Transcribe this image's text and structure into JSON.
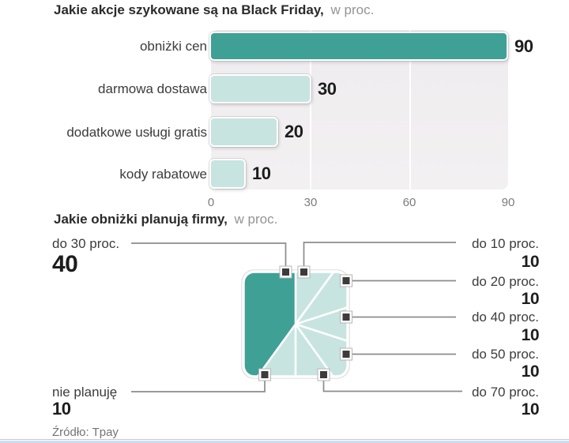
{
  "colors": {
    "teal_dark": "#3fa096",
    "teal_light": "#c8e4e0",
    "plot_bg": "#efecef",
    "callout_gray": "#8c8c8c",
    "marker_dark": "#3c3c3c",
    "footer_strip": "#cddded"
  },
  "source": "Źródło: Tpay",
  "chart_data": [
    {
      "type": "bar",
      "orientation": "horizontal",
      "title": "Jakie akcje szykowane są na Black Friday,",
      "title_suffix": "w proc.",
      "categories": [
        "obniżki cen",
        "darmowa dostawa",
        "dodatkowe usługi gratis",
        "kody rabatowe"
      ],
      "values": [
        90,
        30,
        20,
        10
      ],
      "xlim": [
        0,
        90
      ],
      "xticks": [
        "0",
        "30",
        "60",
        "90"
      ],
      "grid": "vertical-white",
      "bar_colors": [
        "#3fa096",
        "#c8e4e0",
        "#c8e4e0",
        "#c8e4e0"
      ]
    },
    {
      "type": "pie",
      "shape": "rounded-square",
      "title": "Jakie obniżki planują firmy,",
      "title_suffix": "w proc.",
      "start_angle_deg": 0,
      "direction": "clockwise",
      "slices": [
        {
          "label": "do 30 proc.",
          "value": 40,
          "color": "#3fa096",
          "label_side": "left"
        },
        {
          "label": "do 10 proc.",
          "value": 10,
          "color": "#c8e4e0",
          "label_side": "right"
        },
        {
          "label": "do 20 proc.",
          "value": 10,
          "color": "#c8e4e0",
          "label_side": "right"
        },
        {
          "label": "do 40 proc.",
          "value": 10,
          "color": "#c8e4e0",
          "label_side": "right"
        },
        {
          "label": "do 50 proc.",
          "value": 10,
          "color": "#c8e4e0",
          "label_side": "right"
        },
        {
          "label": "do 70 proc.",
          "value": 10,
          "color": "#c8e4e0",
          "label_side": "right"
        },
        {
          "label": "nie planuję",
          "value": 10,
          "color": "#c8e4e0",
          "label_side": "left"
        }
      ]
    }
  ]
}
